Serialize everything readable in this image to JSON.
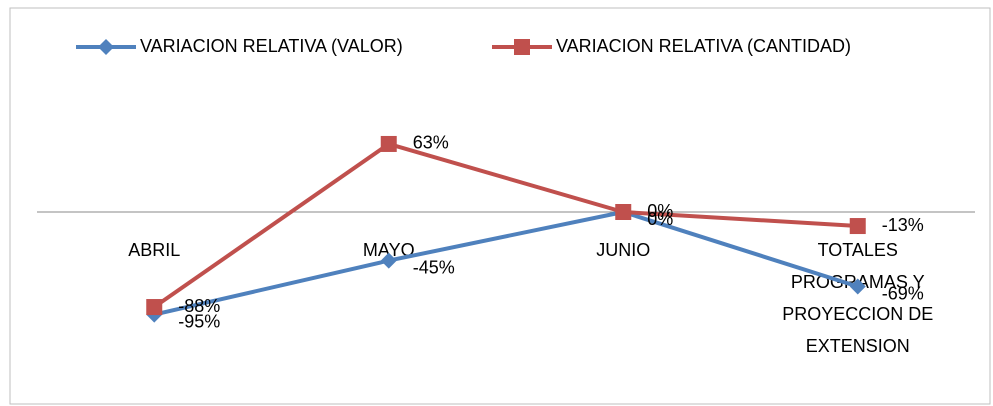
{
  "chart_data": {
    "type": "line",
    "categories": [
      "ABRIL",
      "MAYO",
      "JUNIO",
      "TOTALES PROGRAMAS Y PROYECCION DE EXTENSION"
    ],
    "series": [
      {
        "name": "VARIACION  RELATIVA (VALOR)",
        "color": "#4f81bd",
        "marker": "diamond",
        "values": [
          -95,
          -45,
          0,
          -69
        ],
        "value_labels": [
          "-95%",
          "-45%",
          "0%",
          "-69%"
        ]
      },
      {
        "name": "VARIACION RELATIVA (CANTIDAD)",
        "color": "#c0504d",
        "marker": "square",
        "values": [
          -88,
          63,
          0,
          -13
        ],
        "value_labels": [
          "-88%",
          "63%",
          "0%",
          "-13%"
        ]
      }
    ],
    "ylim": [
      -150,
      100
    ],
    "legend": "top"
  }
}
